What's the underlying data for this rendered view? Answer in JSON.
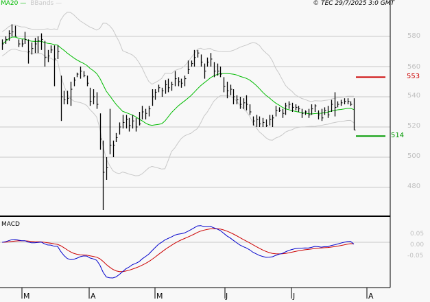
{
  "chart_data": {
    "type": "ohlc",
    "title": "",
    "copyright": "© TEC 29/7/2025 3:0 GMT",
    "legend": [
      {
        "label": "MA20",
        "color": "#00bb00"
      },
      {
        "label": "BBands",
        "color": "#c8c8c8"
      }
    ],
    "x_tick_labels": [
      "M",
      "A",
      "M",
      "J",
      "J",
      "A"
    ],
    "y_ticks": [
      480,
      500,
      520,
      540,
      560,
      580
    ],
    "ylim": [
      463,
      592
    ],
    "grid": true,
    "bars_hlc": [
      [
        578,
        571,
        575
      ],
      [
        580,
        575,
        578
      ],
      [
        584,
        577,
        582
      ],
      [
        588,
        580,
        583
      ],
      [
        587,
        580,
        580
      ],
      [
        578,
        573,
        575
      ],
      [
        578,
        573,
        575
      ],
      [
        583,
        575,
        578
      ],
      [
        578,
        562,
        570
      ],
      [
        576,
        568,
        572
      ],
      [
        579,
        569,
        575
      ],
      [
        580,
        569,
        577
      ],
      [
        582,
        571,
        578
      ],
      [
        577,
        560,
        566
      ],
      [
        571,
        563,
        567
      ],
      [
        574,
        569,
        571
      ],
      [
        574,
        547,
        565
      ],
      [
        574,
        565,
        570
      ],
      [
        554,
        524,
        540
      ],
      [
        544,
        535,
        538
      ],
      [
        544,
        535,
        539
      ],
      [
        550,
        534,
        545
      ],
      [
        553,
        547,
        551
      ],
      [
        556,
        553,
        555
      ],
      [
        560,
        552,
        557
      ],
      [
        557,
        553,
        554
      ],
      [
        554,
        547,
        549
      ],
      [
        546,
        534,
        537
      ],
      [
        545,
        535,
        540
      ],
      [
        543,
        532,
        535
      ],
      [
        529,
        505,
        512
      ],
      [
        511,
        465,
        490
      ],
      [
        500,
        485,
        493
      ],
      [
        532,
        502,
        508
      ],
      [
        511,
        500,
        508
      ],
      [
        516,
        510,
        513
      ],
      [
        523,
        515,
        520
      ],
      [
        528,
        519,
        523
      ],
      [
        528,
        519,
        525
      ],
      [
        526,
        517,
        521
      ],
      [
        528,
        519,
        524
      ],
      [
        526,
        517,
        520
      ],
      [
        530,
        521,
        522
      ],
      [
        534,
        525,
        530
      ],
      [
        532,
        525,
        529
      ],
      [
        534,
        527,
        532
      ],
      [
        545,
        534,
        540
      ],
      [
        545,
        538,
        543
      ],
      [
        548,
        543,
        546
      ],
      [
        546,
        540,
        544
      ],
      [
        551,
        542,
        548
      ],
      [
        552,
        543,
        546
      ],
      [
        550,
        544,
        548
      ],
      [
        557,
        547,
        552
      ],
      [
        553,
        547,
        550
      ],
      [
        552,
        546,
        549
      ],
      [
        554,
        547,
        552
      ],
      [
        564,
        555,
        558
      ],
      [
        564,
        560,
        562
      ],
      [
        571,
        560,
        566
      ],
      [
        571,
        566,
        569
      ],
      [
        568,
        560,
        563
      ],
      [
        562,
        552,
        557
      ],
      [
        566,
        560,
        563
      ],
      [
        569,
        560,
        565
      ],
      [
        563,
        553,
        557
      ],
      [
        562,
        554,
        557
      ],
      [
        560,
        553,
        555
      ],
      [
        553,
        543,
        547
      ],
      [
        550,
        539,
        544
      ],
      [
        548,
        541,
        545
      ],
      [
        545,
        535,
        540
      ],
      [
        541,
        535,
        538
      ],
      [
        540,
        532,
        535
      ],
      [
        539,
        532,
        536
      ],
      [
        541,
        531,
        535
      ],
      [
        535,
        528,
        530
      ],
      [
        527,
        521,
        524
      ],
      [
        528,
        520,
        525
      ],
      [
        527,
        520,
        522
      ],
      [
        526,
        520,
        523
      ],
      [
        525,
        520,
        521
      ],
      [
        528,
        521,
        525
      ],
      [
        528,
        520,
        526
      ],
      [
        534,
        527,
        531
      ],
      [
        533,
        530,
        531
      ],
      [
        532,
        526,
        529
      ],
      [
        536,
        528,
        534
      ],
      [
        537,
        532,
        535
      ],
      [
        536,
        530,
        533
      ],
      [
        535,
        531,
        533
      ],
      [
        534,
        530,
        532
      ],
      [
        532,
        526,
        529
      ],
      [
        531,
        528,
        530
      ],
      [
        532,
        526,
        528
      ],
      [
        535,
        528,
        532
      ],
      [
        535,
        530,
        534
      ],
      [
        531,
        525,
        528
      ],
      [
        532,
        524,
        526
      ],
      [
        533,
        528,
        531
      ],
      [
        534,
        526,
        528
      ],
      [
        538,
        530,
        535
      ],
      [
        543,
        527,
        533
      ],
      [
        537,
        533,
        535
      ],
      [
        538,
        534,
        536
      ],
      [
        539,
        535,
        537
      ],
      [
        539,
        535,
        537
      ],
      [
        537,
        534,
        535
      ],
      [
        539,
        518,
        518
      ]
    ],
    "levels": [
      {
        "value": 553,
        "label": "553",
        "color": "#cc0000"
      },
      {
        "value": 514,
        "label": "514",
        "color": "#009900"
      }
    ],
    "macd": {
      "title": "MACD",
      "y_tick_labels": [
        "0.05",
        "0.00",
        "-0.05"
      ],
      "macd_color": "#0000cc",
      "signal_color": "#cc0000"
    }
  }
}
